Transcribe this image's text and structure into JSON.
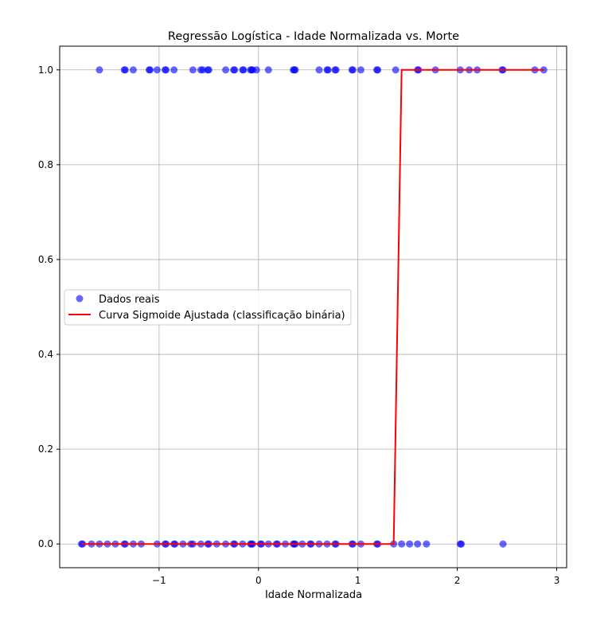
{
  "chart_data": {
    "type": "scatter",
    "title": "Regressão Logística - Idade Normalizada vs. Morte",
    "xlabel": "Idade Normalizada",
    "ylabel": "",
    "xlim": [
      -2.0,
      3.1
    ],
    "ylim": [
      -0.05,
      1.05
    ],
    "x_ticks": [
      -1,
      0,
      1,
      2,
      3
    ],
    "x_tick_labels": [
      "−1",
      "0",
      "1",
      "2",
      "3"
    ],
    "y_ticks": [
      0.0,
      0.2,
      0.4,
      0.6,
      0.8,
      1.0
    ],
    "y_tick_labels": [
      "0.0",
      "0.2",
      "0.4",
      "0.6",
      "0.8",
      "1.0"
    ],
    "grid": true,
    "legend_position": "center-left",
    "series": [
      {
        "name": "Dados reais",
        "kind": "scatter",
        "color": "#0000ff",
        "points": [
          [
            -1.6,
            1
          ],
          [
            -1.35,
            1
          ],
          [
            -1.34,
            1
          ],
          [
            -1.26,
            1
          ],
          [
            -1.1,
            1
          ],
          [
            -1.09,
            1
          ],
          [
            -1.02,
            1
          ],
          [
            -0.94,
            1
          ],
          [
            -0.93,
            1
          ],
          [
            -0.85,
            1
          ],
          [
            -0.66,
            1
          ],
          [
            -0.58,
            1
          ],
          [
            -0.56,
            1
          ],
          [
            -0.51,
            1
          ],
          [
            -0.5,
            1
          ],
          [
            -0.33,
            1
          ],
          [
            -0.25,
            1
          ],
          [
            -0.24,
            1
          ],
          [
            -0.16,
            1
          ],
          [
            -0.15,
            1
          ],
          [
            -0.08,
            1
          ],
          [
            -0.07,
            1
          ],
          [
            -0.06,
            1
          ],
          [
            -0.02,
            1
          ],
          [
            0.1,
            1
          ],
          [
            0.35,
            1
          ],
          [
            0.36,
            1
          ],
          [
            0.37,
            1
          ],
          [
            0.61,
            1
          ],
          [
            0.69,
            1
          ],
          [
            0.7,
            1
          ],
          [
            0.77,
            1
          ],
          [
            0.78,
            1
          ],
          [
            0.94,
            1
          ],
          [
            0.95,
            1
          ],
          [
            1.03,
            1
          ],
          [
            1.19,
            1
          ],
          [
            1.2,
            1
          ],
          [
            1.38,
            1
          ],
          [
            1.6,
            1
          ],
          [
            1.61,
            1
          ],
          [
            1.78,
            1
          ],
          [
            2.03,
            1
          ],
          [
            2.12,
            1
          ],
          [
            2.2,
            1
          ],
          [
            2.45,
            1
          ],
          [
            2.46,
            1
          ],
          [
            2.78,
            1
          ],
          [
            2.87,
            1
          ],
          [
            -1.78,
            0
          ],
          [
            -1.77,
            0
          ],
          [
            -1.68,
            0
          ],
          [
            -1.6,
            0
          ],
          [
            -1.52,
            0
          ],
          [
            -1.44,
            0
          ],
          [
            -1.35,
            0
          ],
          [
            -1.34,
            0
          ],
          [
            -1.26,
            0
          ],
          [
            -1.18,
            0
          ],
          [
            -1.02,
            0
          ],
          [
            -0.94,
            0
          ],
          [
            -0.93,
            0
          ],
          [
            -0.85,
            0
          ],
          [
            -0.84,
            0
          ],
          [
            -0.76,
            0
          ],
          [
            -0.68,
            0
          ],
          [
            -0.66,
            0
          ],
          [
            -0.58,
            0
          ],
          [
            -0.51,
            0
          ],
          [
            -0.5,
            0
          ],
          [
            -0.42,
            0
          ],
          [
            -0.33,
            0
          ],
          [
            -0.25,
            0
          ],
          [
            -0.24,
            0
          ],
          [
            -0.16,
            0
          ],
          [
            -0.08,
            0
          ],
          [
            -0.07,
            0
          ],
          [
            -0.06,
            0
          ],
          [
            0.02,
            0
          ],
          [
            0.03,
            0
          ],
          [
            0.1,
            0
          ],
          [
            0.18,
            0
          ],
          [
            0.19,
            0
          ],
          [
            0.27,
            0
          ],
          [
            0.35,
            0
          ],
          [
            0.36,
            0
          ],
          [
            0.37,
            0
          ],
          [
            0.44,
            0
          ],
          [
            0.52,
            0
          ],
          [
            0.53,
            0
          ],
          [
            0.61,
            0
          ],
          [
            0.69,
            0
          ],
          [
            0.77,
            0
          ],
          [
            0.78,
            0
          ],
          [
            0.94,
            0
          ],
          [
            0.95,
            0
          ],
          [
            1.03,
            0
          ],
          [
            1.19,
            0
          ],
          [
            1.2,
            0
          ],
          [
            1.36,
            0
          ],
          [
            1.44,
            0
          ],
          [
            1.52,
            0
          ],
          [
            1.6,
            0
          ],
          [
            1.69,
            0
          ],
          [
            2.03,
            0
          ],
          [
            2.04,
            0
          ],
          [
            2.46,
            0
          ]
        ]
      },
      {
        "name": "Curva Sigmoide Ajustada (classificação binária)",
        "kind": "line",
        "color": "#ff0000",
        "points": [
          [
            -1.78,
            0
          ],
          [
            1.36,
            0
          ],
          [
            1.44,
            1
          ],
          [
            2.87,
            1
          ]
        ]
      }
    ]
  }
}
